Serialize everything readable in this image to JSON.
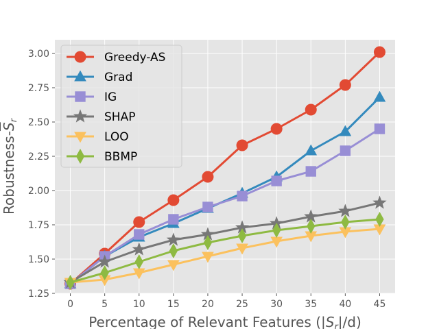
{
  "chart_data": {
    "type": "line",
    "x": [
      0,
      5,
      10,
      15,
      20,
      25,
      30,
      35,
      40,
      45
    ],
    "xlabel": "Percentage of Relevant Features (|S_r|/d)",
    "xlabel_pre": "Percentage of Relevant Features (|",
    "xlabel_var": "S",
    "xlabel_sub": "r",
    "xlabel_post": "|/d)",
    "ylabel": "Robustness-S_r (overlined)",
    "ylabel_pre": "Robustness-",
    "ylabel_var": "S",
    "ylabel_sub": "r",
    "xlim": [
      -2.25,
      47.25
    ],
    "ylim": [
      1.25,
      3.1
    ],
    "xticks": [
      "0",
      "5",
      "10",
      "15",
      "20",
      "25",
      "30",
      "35",
      "40",
      "45"
    ],
    "yticks": [
      "1.25",
      "1.50",
      "1.75",
      "2.00",
      "2.25",
      "2.50",
      "2.75",
      "3.00"
    ],
    "grid": true,
    "legend_position": "top-left",
    "series": [
      {
        "name": "Greedy-AS",
        "color": "#E24A33",
        "marker": "circle",
        "values": [
          1.32,
          1.54,
          1.77,
          1.93,
          2.1,
          2.33,
          2.45,
          2.59,
          2.77,
          3.01
        ]
      },
      {
        "name": "Grad",
        "color": "#348ABD",
        "marker": "triangle-up",
        "values": [
          1.32,
          1.52,
          1.66,
          1.76,
          1.87,
          1.98,
          2.1,
          2.29,
          2.43,
          2.68
        ]
      },
      {
        "name": "IG",
        "color": "#988ED5",
        "marker": "square",
        "values": [
          1.32,
          1.52,
          1.68,
          1.79,
          1.88,
          1.96,
          2.07,
          2.14,
          2.29,
          2.45
        ]
      },
      {
        "name": "SHAP",
        "color": "#777777",
        "marker": "star",
        "values": [
          1.33,
          1.48,
          1.57,
          1.64,
          1.68,
          1.73,
          1.76,
          1.81,
          1.85,
          1.91
        ]
      },
      {
        "name": "LOO",
        "color": "#FBC15E",
        "marker": "triangle-down",
        "values": [
          1.33,
          1.35,
          1.4,
          1.46,
          1.52,
          1.58,
          1.63,
          1.67,
          1.7,
          1.72
        ]
      },
      {
        "name": "BBMP",
        "color": "#8EBA42",
        "marker": "diamond",
        "values": [
          1.33,
          1.4,
          1.48,
          1.56,
          1.62,
          1.67,
          1.71,
          1.74,
          1.77,
          1.79
        ]
      }
    ]
  }
}
